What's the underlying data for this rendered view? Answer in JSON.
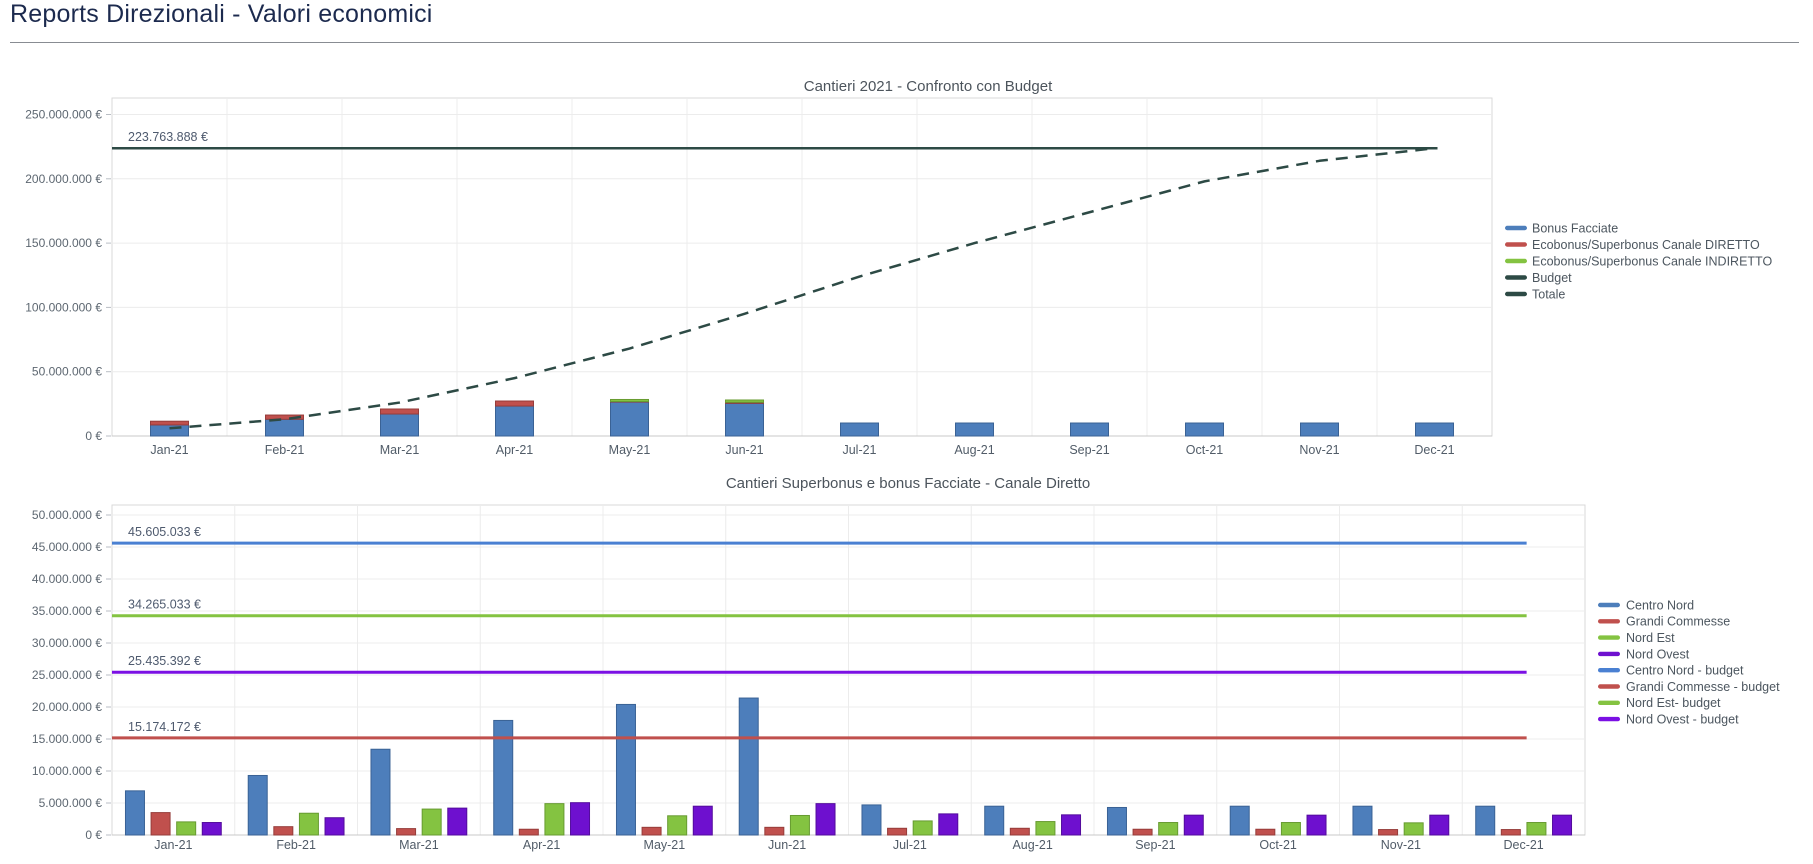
{
  "page": {
    "title": "Reports Direzionali - Valori economici"
  },
  "colors": {
    "page_title": "#1c2a4e",
    "divider": "#888c92",
    "chart_title": "#4c545c",
    "tick_label": "#5d6771",
    "axis_label": "#515c68",
    "legend_label": "#4c565f",
    "annotation": "#4e5a6e",
    "grid": "#ececec",
    "plot_border": "#d9d9d9",
    "axis_line": "#c8c8c8",
    "tick_mark": "#b9bec4",
    "dark_line": "#2d4a45"
  },
  "chart_data": [
    {
      "type": "bar",
      "bar_mode": "stacked",
      "title": "Cantieri 2021 - Confronto con Budget",
      "legend_position": "right",
      "grid": true,
      "categories": [
        "Jan-21",
        "Feb-21",
        "Mar-21",
        "Apr-21",
        "May-21",
        "Jun-21",
        "Jul-21",
        "Aug-21",
        "Sep-21",
        "Oct-21",
        "Nov-21",
        "Dec-21"
      ],
      "y_ticks": [
        "0 €",
        "50.000.000 €",
        "100.000.000 €",
        "150.000.000 €",
        "200.000.000 €",
        "250.000.000 €"
      ],
      "ylim": [
        0,
        250000000
      ],
      "series": [
        {
          "name": "Bonus Facciate",
          "type": "bar",
          "color": "#4d7ebb",
          "border": "#3a6295",
          "values": [
            8600000,
            13000000,
            17100000,
            23300000,
            26400000,
            25400000,
            10100000,
            10100000,
            10100000,
            10100000,
            10100000,
            10100000
          ]
        },
        {
          "name": "Ecobonus/Superbonus Canale DIRETTO",
          "type": "bar",
          "color": "#c0504d",
          "border": "#963c3a",
          "values": [
            2900000,
            3300000,
            3900000,
            3900000,
            400000,
            800000,
            0,
            0,
            0,
            0,
            0,
            0
          ]
        },
        {
          "name": "Ecobonus/Superbonus Canale INDIRETTO",
          "type": "bar",
          "color": "#84c341",
          "border": "#679b31",
          "values": [
            0,
            0,
            0,
            0,
            1600000,
            1800000,
            0,
            0,
            0,
            0,
            0,
            0
          ]
        }
      ],
      "plot_lines": [
        {
          "name": "Budget",
          "value": 223763888,
          "label": "223.763.888 €",
          "color": "#2d4a45"
        }
      ],
      "line_series": [
        {
          "name": "Totale",
          "color": "#2d4a45",
          "dashed": true,
          "values": [
            6000000,
            13000000,
            26000000,
            45000000,
            68000000,
            95000000,
            124000000,
            150000000,
            174000000,
            198000000,
            214000000,
            223763888
          ]
        }
      ]
    },
    {
      "type": "bar",
      "bar_mode": "grouped",
      "title": "Cantieri Superbonus e bonus Facciate - Canale Diretto",
      "legend_position": "right",
      "grid": true,
      "categories": [
        "Jan-21",
        "Feb-21",
        "Mar-21",
        "Apr-21",
        "May-21",
        "Jun-21",
        "Jul-21",
        "Aug-21",
        "Sep-21",
        "Oct-21",
        "Nov-21",
        "Dec-21"
      ],
      "y_ticks": [
        "0 €",
        "5.000.000 €",
        "10.000.000 €",
        "15.000.000 €",
        "20.000.000 €",
        "25.000.000 €",
        "30.000.000 €",
        "35.000.000 €",
        "40.000.000 €",
        "45.000.000 €",
        "50.000.000 €"
      ],
      "ylim": [
        0,
        50000000
      ],
      "series": [
        {
          "name": "Centro Nord",
          "type": "bar",
          "color": "#4d7ebb",
          "border": "#3a6295",
          "values": [
            6900000,
            9300000,
            13400000,
            17900000,
            20400000,
            21400000,
            4700000,
            4500000,
            4300000,
            4500000,
            4500000,
            4500000
          ]
        },
        {
          "name": "Grandi Commesse",
          "type": "bar",
          "color": "#c0504d",
          "border": "#963c3a",
          "values": [
            3500000,
            1300000,
            1000000,
            900000,
            1200000,
            1200000,
            1050000,
            1050000,
            900000,
            900000,
            850000,
            850000
          ]
        },
        {
          "name": "Nord Est",
          "type": "bar",
          "color": "#84c341",
          "border": "#679b31",
          "values": [
            2050000,
            3400000,
            4050000,
            4900000,
            3000000,
            3050000,
            2200000,
            2100000,
            1950000,
            1950000,
            1900000,
            1950000
          ]
        },
        {
          "name": "Nord Ovest",
          "type": "bar",
          "color": "#6e10cf",
          "border": "#530c9c",
          "values": [
            1950000,
            2700000,
            4200000,
            5050000,
            4500000,
            4900000,
            3300000,
            3150000,
            3100000,
            3100000,
            3100000,
            3100000
          ]
        }
      ],
      "plot_lines": [
        {
          "name": "Centro Nord - budget",
          "value": 45605033,
          "label": "45.605.033 €",
          "color": "#4a80d2"
        },
        {
          "name": "Grandi Commesse - budget",
          "value": 15174172,
          "label": "15.174.172 €",
          "color": "#c0504d"
        },
        {
          "name": "Nord Est- budget",
          "value": 34265033,
          "label": "34.265.033 €",
          "color": "#84c341"
        },
        {
          "name": "Nord Ovest - budget",
          "value": 25435392,
          "label": "25.435.392 €",
          "color": "#7b10e4"
        }
      ],
      "line_series": []
    }
  ]
}
